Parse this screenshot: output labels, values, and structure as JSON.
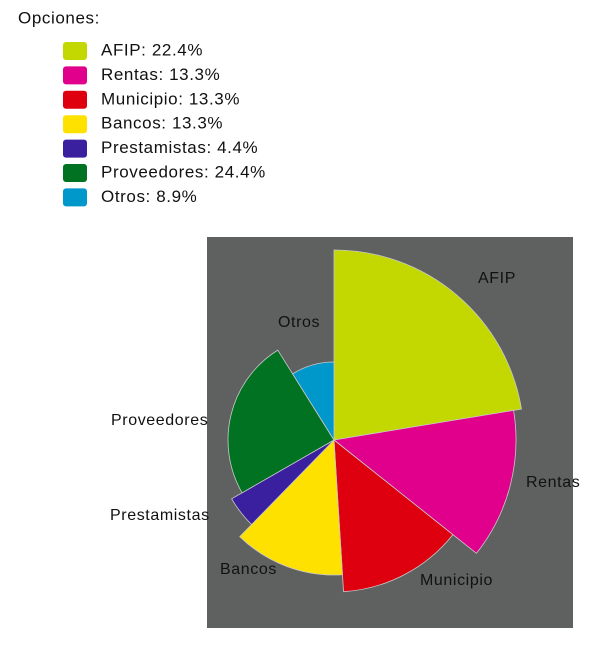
{
  "chart_data": {
    "type": "pie",
    "legend_title": "Opciones:",
    "categories": [
      "AFIP",
      "Rentas",
      "Municipio",
      "Bancos",
      "Prestamistas",
      "Proveedores",
      "Otros"
    ],
    "values": [
      22.4,
      13.3,
      13.3,
      13.3,
      4.4,
      24.4,
      8.9
    ],
    "value_labels": [
      "AFIP: 22.4%",
      "Rentas: 13.3%",
      "Municipio: 13.3%",
      "Bancos: 13.3%",
      "Prestamistas: 4.4%",
      "Proveedores: 24.4%",
      "Otros: 8.9%"
    ],
    "colors": [
      "#c2d800",
      "#e0008c",
      "#df000f",
      "#ffe100",
      "#3a1f9e",
      "#007222",
      "#0098cb"
    ]
  }
}
